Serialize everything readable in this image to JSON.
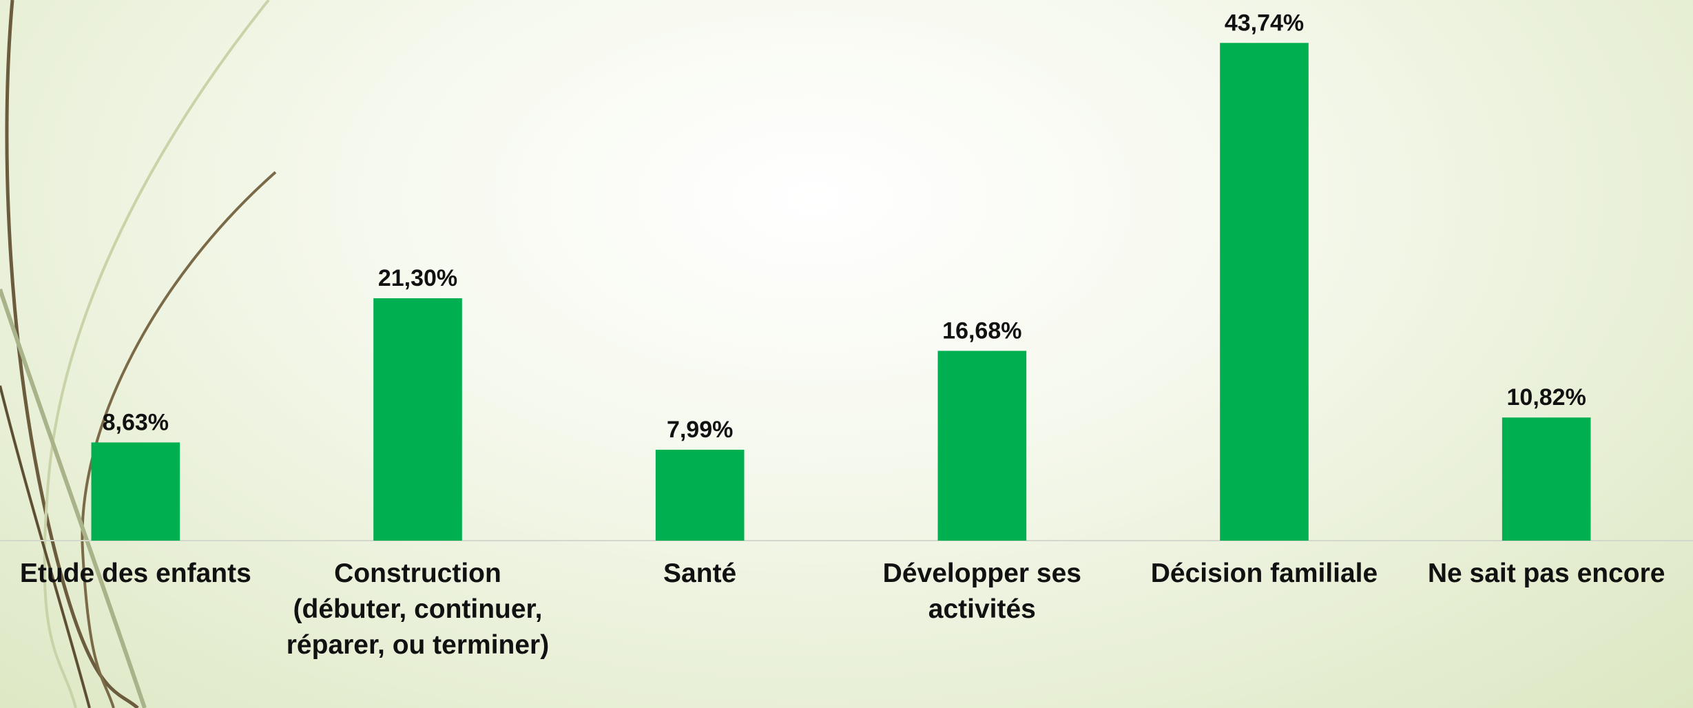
{
  "chart_data": {
    "type": "bar",
    "categories": [
      "Etude des enfants",
      "Construction (débuter, continuer, réparer, ou terminer)",
      "Santé",
      "Développer ses activités",
      "Décision familiale",
      "Ne sait pas encore"
    ],
    "values": [
      8.63,
      21.3,
      7.99,
      16.68,
      43.74,
      10.82
    ],
    "value_labels": [
      "8,63%",
      "21,30%",
      "7,99%",
      "16,68%",
      "43,74%",
      "10,82%"
    ],
    "color": "#00b050",
    "ylim": [
      0,
      45
    ]
  }
}
